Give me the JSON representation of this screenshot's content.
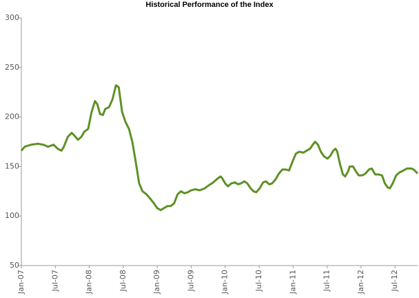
{
  "chart_data": {
    "type": "line",
    "title": "Historical Performance of the Index",
    "x": [
      0.0,
      0.6,
      1.7,
      2.9,
      3.9,
      4.7,
      5.7,
      6.4,
      7.1,
      7.5,
      8.2,
      8.9,
      9.4,
      10.0,
      10.6,
      11.1,
      11.8,
      12.4,
      13.0,
      13.4,
      13.9,
      14.4,
      14.8,
      15.5,
      16.1,
      16.7,
      17.2,
      17.8,
      18.4,
      19.0,
      19.6,
      20.2,
      20.8,
      21.4,
      22.1,
      22.7,
      23.4,
      24.0,
      24.6,
      25.2,
      25.8,
      26.4,
      27.0,
      27.6,
      28.2,
      28.8,
      29.4,
      30.0,
      30.7,
      31.5,
      32.4,
      33.1,
      33.9,
      34.7,
      35.2,
      35.5,
      36.0,
      36.5,
      37.1,
      37.7,
      38.3,
      38.8,
      39.4,
      39.9,
      40.5,
      41.0,
      41.5,
      42.1,
      42.7,
      43.2,
      43.8,
      44.3,
      44.9,
      45.5,
      46.1,
      46.7,
      47.3,
      47.9,
      48.5,
      49.1,
      49.8,
      50.4,
      51.0,
      51.6,
      51.9,
      52.4,
      52.9,
      53.5,
      54.1,
      54.6,
      55.1,
      55.5,
      55.8,
      56.3,
      56.8,
      57.2,
      57.7,
      58.0,
      58.6,
      59.1,
      59.6,
      60.2,
      60.8,
      61.4,
      61.9,
      62.5,
      63.1,
      63.7,
      64.2,
      64.7,
      65.1,
      65.6,
      66.2,
      66.8,
      67.5,
      68.1,
      68.9,
      69.3,
      70.0
    ],
    "series": [
      {
        "name": "Index",
        "color": "#5e9126",
        "values": [
          166,
          170,
          172,
          173,
          172,
          170,
          172,
          168,
          166,
          170,
          180,
          184,
          181,
          177,
          180,
          185,
          188,
          205,
          216,
          213,
          203,
          202,
          208,
          210,
          218,
          232,
          230,
          205,
          195,
          188,
          175,
          155,
          133,
          125,
          122,
          118,
          113,
          108,
          106,
          108,
          110,
          110,
          113,
          122,
          125,
          123,
          124,
          126,
          127,
          126,
          128,
          131,
          134,
          138,
          140,
          138,
          133,
          130,
          133,
          134,
          132,
          133,
          135,
          133,
          128,
          125,
          124,
          128,
          134,
          135,
          132,
          133,
          137,
          143,
          147,
          147,
          146,
          155,
          163,
          165,
          164,
          166,
          168,
          173,
          175,
          172,
          165,
          160,
          158,
          161,
          166,
          168,
          165,
          152,
          142,
          140,
          145,
          150,
          150,
          145,
          141,
          141,
          143,
          147,
          148,
          142,
          142,
          141,
          133,
          129,
          128,
          133,
          141,
          144,
          146,
          148,
          148,
          147,
          143
        ]
      }
    ],
    "xlim": [
      0,
      70
    ],
    "xticks": [
      {
        "value": 0,
        "label": "Jan-07"
      },
      {
        "value": 6,
        "label": "Jul-07"
      },
      {
        "value": 12,
        "label": "Jan-08"
      },
      {
        "value": 18,
        "label": "Jul-08"
      },
      {
        "value": 24,
        "label": "Jan-09"
      },
      {
        "value": 30,
        "label": "Jul-09"
      },
      {
        "value": 36,
        "label": "Jan-10"
      },
      {
        "value": 42,
        "label": "Jul-10"
      },
      {
        "value": 48,
        "label": "Jan-11"
      },
      {
        "value": 54,
        "label": "Jul-11"
      },
      {
        "value": 60,
        "label": "Jan-12"
      },
      {
        "value": 66,
        "label": "Jul-12"
      }
    ],
    "ylim": [
      50,
      300
    ],
    "yticks": [
      50,
      100,
      150,
      200,
      250,
      300
    ],
    "grid": false
  }
}
